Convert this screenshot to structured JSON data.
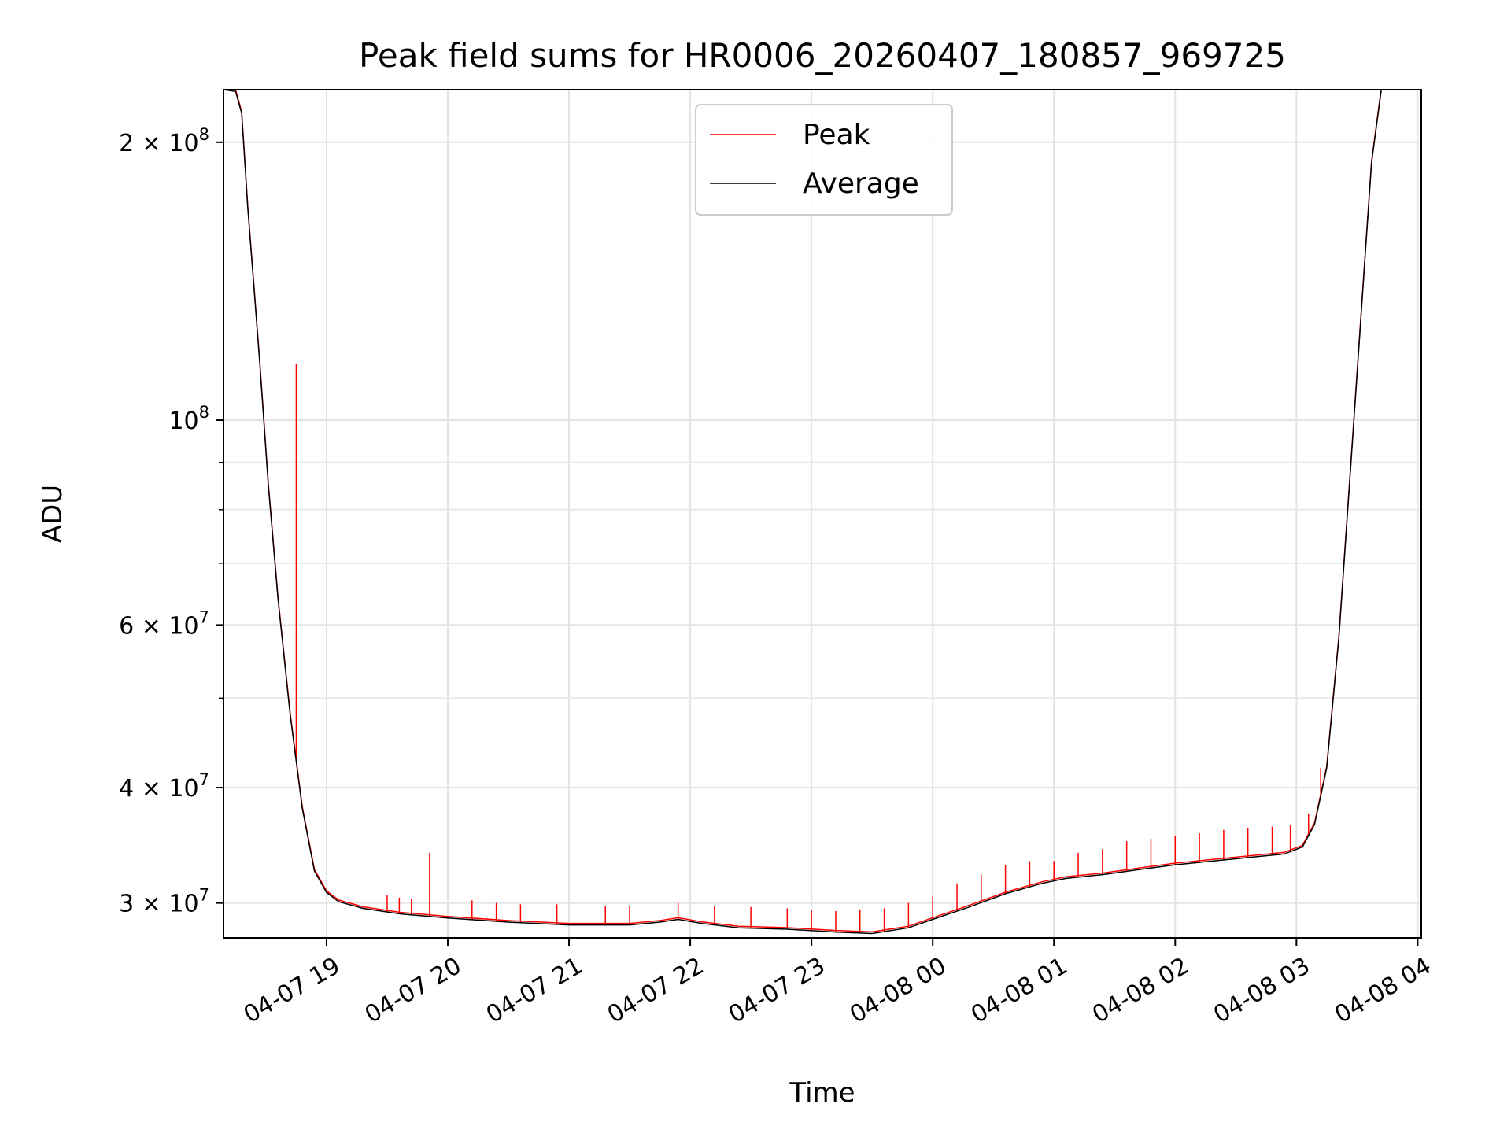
{
  "chart_data": {
    "type": "line",
    "title": "Peak field sums for HR0006_20260407_180857_969725",
    "xlabel": "Time",
    "ylabel": "ADU",
    "yscale": "log",
    "ylim": [
      27500000,
      228000000
    ],
    "xlim_hours": [
      18.15,
      28.03
    ],
    "grid": true,
    "legend_position": "top-center",
    "x_ticks": [
      {
        "hour": 19,
        "label": "04-07 19"
      },
      {
        "hour": 20,
        "label": "04-07 20"
      },
      {
        "hour": 21,
        "label": "04-07 21"
      },
      {
        "hour": 22,
        "label": "04-07 22"
      },
      {
        "hour": 23,
        "label": "04-07 23"
      },
      {
        "hour": 24,
        "label": "04-08 00"
      },
      {
        "hour": 25,
        "label": "04-08 01"
      },
      {
        "hour": 26,
        "label": "04-08 02"
      },
      {
        "hour": 27,
        "label": "04-08 03"
      },
      {
        "hour": 28,
        "label": "04-08 04"
      }
    ],
    "y_ticks": [
      {
        "value": 30000000,
        "mantissa": "3",
        "exp": "7"
      },
      {
        "value": 40000000,
        "mantissa": "4",
        "exp": "7"
      },
      {
        "value": 60000000,
        "mantissa": "6",
        "exp": "7"
      },
      {
        "value": 100000000,
        "mantissa": "",
        "exp": "8"
      },
      {
        "value": 200000000,
        "mantissa": "2",
        "exp": "8"
      }
    ],
    "y_minor_ticks": [
      50000000,
      70000000,
      80000000,
      90000000
    ],
    "series": [
      {
        "name": "Average",
        "color": "#000000",
        "points": [
          [
            18.15,
            228000000
          ],
          [
            18.25,
            227000000
          ],
          [
            18.3,
            215000000
          ],
          [
            18.35,
            170000000
          ],
          [
            18.4,
            140000000
          ],
          [
            18.45,
            115000000
          ],
          [
            18.52,
            85000000
          ],
          [
            18.6,
            64000000
          ],
          [
            18.7,
            48000000
          ],
          [
            18.8,
            38000000
          ],
          [
            18.9,
            32500000
          ],
          [
            19.0,
            30800000
          ],
          [
            19.1,
            30100000
          ],
          [
            19.3,
            29600000
          ],
          [
            19.6,
            29200000
          ],
          [
            20.0,
            28900000
          ],
          [
            20.5,
            28600000
          ],
          [
            21.0,
            28400000
          ],
          [
            21.5,
            28400000
          ],
          [
            21.75,
            28600000
          ],
          [
            21.9,
            28800000
          ],
          [
            22.1,
            28500000
          ],
          [
            22.4,
            28200000
          ],
          [
            22.8,
            28100000
          ],
          [
            23.2,
            27900000
          ],
          [
            23.5,
            27800000
          ],
          [
            23.8,
            28200000
          ],
          [
            24.0,
            28800000
          ],
          [
            24.3,
            29700000
          ],
          [
            24.6,
            30700000
          ],
          [
            24.9,
            31500000
          ],
          [
            25.1,
            31900000
          ],
          [
            25.4,
            32200000
          ],
          [
            25.7,
            32600000
          ],
          [
            26.0,
            33000000
          ],
          [
            26.3,
            33300000
          ],
          [
            26.6,
            33600000
          ],
          [
            26.9,
            33900000
          ],
          [
            27.05,
            34500000
          ],
          [
            27.15,
            36500000
          ],
          [
            27.25,
            42000000
          ],
          [
            27.35,
            58000000
          ],
          [
            27.45,
            90000000
          ],
          [
            27.55,
            140000000
          ],
          [
            27.62,
            190000000
          ],
          [
            27.7,
            228000000
          ]
        ]
      },
      {
        "name": "Peak",
        "color": "#ff0000",
        "spikes": [
          [
            18.75,
            115000000
          ],
          [
            19.5,
            30600000
          ],
          [
            19.6,
            30400000
          ],
          [
            19.7,
            30300000
          ],
          [
            19.85,
            34000000
          ],
          [
            20.2,
            30200000
          ],
          [
            20.4,
            30000000
          ],
          [
            20.6,
            29900000
          ],
          [
            20.9,
            29900000
          ],
          [
            21.3,
            29800000
          ],
          [
            21.5,
            29800000
          ],
          [
            21.9,
            30000000
          ],
          [
            22.2,
            29800000
          ],
          [
            22.5,
            29700000
          ],
          [
            22.8,
            29600000
          ],
          [
            23.0,
            29500000
          ],
          [
            23.2,
            29400000
          ],
          [
            23.4,
            29500000
          ],
          [
            23.6,
            29600000
          ],
          [
            23.8,
            30000000
          ],
          [
            24.0,
            30500000
          ],
          [
            24.2,
            31500000
          ],
          [
            24.4,
            32200000
          ],
          [
            24.6,
            33000000
          ],
          [
            24.8,
            33300000
          ],
          [
            25.0,
            33300000
          ],
          [
            25.2,
            34000000
          ],
          [
            25.4,
            34300000
          ],
          [
            25.6,
            35000000
          ],
          [
            25.8,
            35200000
          ],
          [
            26.0,
            35500000
          ],
          [
            26.2,
            35700000
          ],
          [
            26.4,
            36000000
          ],
          [
            26.6,
            36200000
          ],
          [
            26.8,
            36300000
          ],
          [
            26.95,
            36400000
          ],
          [
            27.1,
            37500000
          ],
          [
            27.2,
            42000000
          ]
        ]
      }
    ]
  }
}
